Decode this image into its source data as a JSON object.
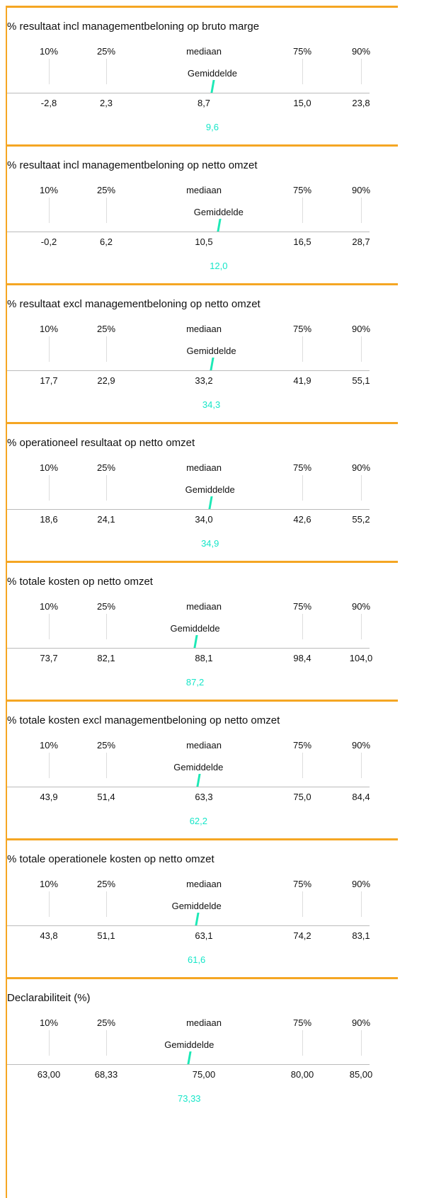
{
  "panels": [
    {
      "title": "% resultaat incl managementbeloning op bruto marge",
      "labels": [
        "10%",
        "25%",
        "mediaan",
        "75%",
        "90%"
      ],
      "mean_label": "Gemiddelde",
      "values": [
        "-2,8",
        "2,3",
        "8,7",
        "15,0",
        "23,8"
      ],
      "mean": "9,6"
    },
    {
      "title": "% resultaat incl managementbeloning op netto omzet",
      "labels": [
        "10%",
        "25%",
        "mediaan",
        "75%",
        "90%"
      ],
      "mean_label": "Gemiddelde",
      "values": [
        "-0,2",
        "6,2",
        "10,5",
        "16,5",
        "28,7"
      ],
      "mean": "12,0"
    },
    {
      "title": "% resultaat excl managementbeloning op netto omzet",
      "labels": [
        "10%",
        "25%",
        "mediaan",
        "75%",
        "90%"
      ],
      "mean_label": "Gemiddelde",
      "values": [
        "17,7",
        "22,9",
        "33,2",
        "41,9",
        "55,1"
      ],
      "mean": "34,3"
    },
    {
      "title": "% operationeel resultaat op netto omzet",
      "labels": [
        "10%",
        "25%",
        "mediaan",
        "75%",
        "90%"
      ],
      "mean_label": "Gemiddelde",
      "values": [
        "18,6",
        "24,1",
        "34,0",
        "42,6",
        "55,2"
      ],
      "mean": "34,9"
    },
    {
      "title": "% totale kosten op netto omzet",
      "labels": [
        "10%",
        "25%",
        "mediaan",
        "75%",
        "90%"
      ],
      "mean_label": "Gemiddelde",
      "values": [
        "73,7",
        "82,1",
        "88,1",
        "98,4",
        "104,0"
      ],
      "mean": "87,2"
    },
    {
      "title": "% totale kosten excl managementbeloning op netto omzet",
      "labels": [
        "10%",
        "25%",
        "mediaan",
        "75%",
        "90%"
      ],
      "mean_label": "Gemiddelde",
      "values": [
        "43,9",
        "51,4",
        "63,3",
        "75,0",
        "84,4"
      ],
      "mean": "62,2"
    },
    {
      "title": "% totale operationele kosten op netto omzet",
      "labels": [
        "10%",
        "25%",
        "mediaan",
        "75%",
        "90%"
      ],
      "mean_label": "Gemiddelde",
      "values": [
        "43,8",
        "51,1",
        "63,1",
        "74,2",
        "83,1"
      ],
      "mean": "61,6"
    },
    {
      "title": "Declarabiliteit (%)",
      "labels": [
        "10%",
        "25%",
        "mediaan",
        "75%",
        "90%"
      ],
      "mean_label": "Gemiddelde",
      "values": [
        "63,00",
        "68,33",
        "75,00",
        "80,00",
        "85,00"
      ],
      "mean": "73,33"
    }
  ]
}
